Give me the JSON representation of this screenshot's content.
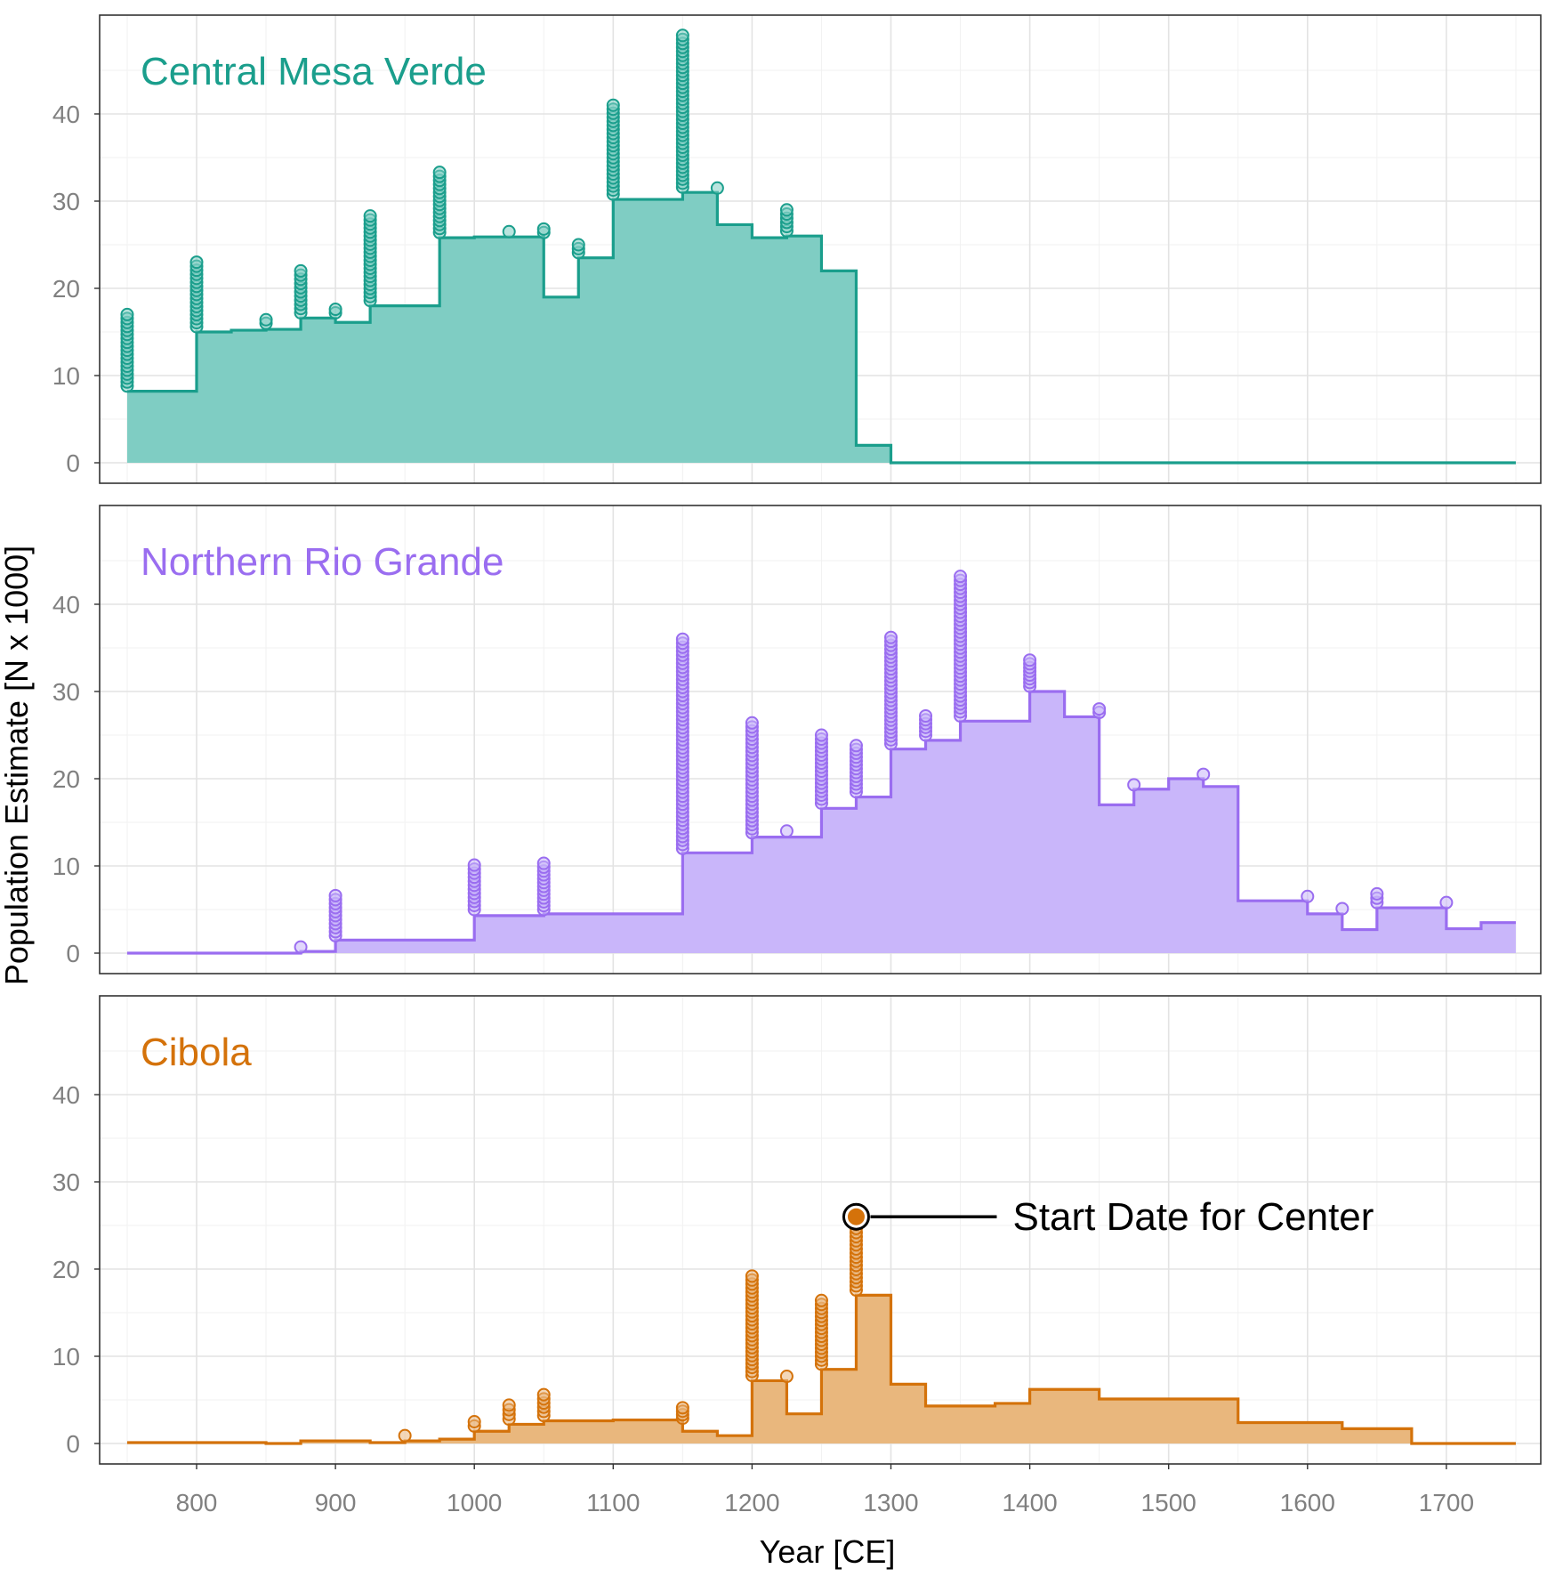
{
  "chart_data": {
    "type": "area",
    "subtype": "faceted step area with vertical point stacks",
    "xlabel": "Year [CE]",
    "ylabel": "Population Estimate [N x 1000]",
    "xlim": [
      750,
      1750
    ],
    "ylim": [
      0,
      50
    ],
    "x_ticks": [
      800,
      900,
      1000,
      1100,
      1200,
      1300,
      1400,
      1500,
      1600,
      1700
    ],
    "y_ticks": [
      0,
      10,
      20,
      30,
      40
    ],
    "grid": true,
    "facet_layout": "3 rows, shared x axis",
    "annotation": {
      "text": "Start Date for Center",
      "panel": "Cibola",
      "point": {
        "x": 1275,
        "y": 26
      }
    },
    "panels": [
      {
        "title": "Central Mesa Verde",
        "color": "#1a9e8c",
        "fill": "#7fcdc3",
        "steps": [
          {
            "x": 750,
            "y": 8.2
          },
          {
            "x": 800,
            "y": 15.0
          },
          {
            "x": 825,
            "y": 15.2
          },
          {
            "x": 850,
            "y": 15.3
          },
          {
            "x": 875,
            "y": 16.6
          },
          {
            "x": 900,
            "y": 16.1
          },
          {
            "x": 925,
            "y": 18.0
          },
          {
            "x": 975,
            "y": 25.8
          },
          {
            "x": 1000,
            "y": 25.9
          },
          {
            "x": 1050,
            "y": 19.0
          },
          {
            "x": 1075,
            "y": 23.5
          },
          {
            "x": 1100,
            "y": 30.2
          },
          {
            "x": 1150,
            "y": 31.0
          },
          {
            "x": 1175,
            "y": 27.3
          },
          {
            "x": 1200,
            "y": 25.8
          },
          {
            "x": 1225,
            "y": 26.0
          },
          {
            "x": 1250,
            "y": 22.0
          },
          {
            "x": 1275,
            "y": 2.0
          },
          {
            "x": 1300,
            "y": 0
          },
          {
            "x": 1750,
            "y": 0
          }
        ],
        "point_stacks": [
          {
            "x": 750,
            "from": 8.8,
            "to": 17.0
          },
          {
            "x": 800,
            "from": 15.6,
            "to": 23.0
          },
          {
            "x": 850,
            "from": 16.0,
            "to": 16.4
          },
          {
            "x": 875,
            "from": 17.2,
            "to": 22.0
          },
          {
            "x": 900,
            "from": 17.2,
            "to": 17.6
          },
          {
            "x": 925,
            "from": 18.6,
            "to": 28.3
          },
          {
            "x": 975,
            "from": 26.4,
            "to": 33.3
          },
          {
            "x": 1025,
            "from": 26.5,
            "to": 26.5
          },
          {
            "x": 1050,
            "from": 26.4,
            "to": 26.8
          },
          {
            "x": 1075,
            "from": 24.1,
            "to": 25.0
          },
          {
            "x": 1100,
            "from": 30.8,
            "to": 41.0
          },
          {
            "x": 1150,
            "from": 31.6,
            "to": 49.0
          },
          {
            "x": 1175,
            "from": 31.5,
            "to": 31.5
          },
          {
            "x": 1225,
            "from": 26.6,
            "to": 29.0
          }
        ]
      },
      {
        "title": "Northern Rio Grande",
        "color": "#9a6df0",
        "fill": "#c9b6fa",
        "steps": [
          {
            "x": 750,
            "y": 0
          },
          {
            "x": 875,
            "y": 0.2
          },
          {
            "x": 900,
            "y": 1.5
          },
          {
            "x": 1000,
            "y": 4.3
          },
          {
            "x": 1050,
            "y": 4.5
          },
          {
            "x": 1150,
            "y": 11.5
          },
          {
            "x": 1200,
            "y": 13.3
          },
          {
            "x": 1250,
            "y": 16.6
          },
          {
            "x": 1275,
            "y": 17.9
          },
          {
            "x": 1300,
            "y": 23.4
          },
          {
            "x": 1325,
            "y": 24.4
          },
          {
            "x": 1350,
            "y": 26.6
          },
          {
            "x": 1400,
            "y": 30.0
          },
          {
            "x": 1425,
            "y": 27.1
          },
          {
            "x": 1450,
            "y": 17.0
          },
          {
            "x": 1475,
            "y": 18.8
          },
          {
            "x": 1500,
            "y": 20.0
          },
          {
            "x": 1525,
            "y": 19.1
          },
          {
            "x": 1550,
            "y": 6.0
          },
          {
            "x": 1600,
            "y": 4.5
          },
          {
            "x": 1625,
            "y": 2.7
          },
          {
            "x": 1650,
            "y": 5.2
          },
          {
            "x": 1700,
            "y": 2.8
          },
          {
            "x": 1725,
            "y": 3.5
          },
          {
            "x": 1750,
            "y": 3.5
          }
        ],
        "point_stacks": [
          {
            "x": 875,
            "from": 0.7,
            "to": 0.7
          },
          {
            "x": 900,
            "from": 2.0,
            "to": 6.6
          },
          {
            "x": 1000,
            "from": 5.0,
            "to": 10.1
          },
          {
            "x": 1050,
            "from": 5.0,
            "to": 10.3
          },
          {
            "x": 1150,
            "from": 12.0,
            "to": 36.0
          },
          {
            "x": 1200,
            "from": 13.8,
            "to": 26.4
          },
          {
            "x": 1225,
            "from": 14.0,
            "to": 14.0
          },
          {
            "x": 1250,
            "from": 17.2,
            "to": 25.0
          },
          {
            "x": 1275,
            "from": 18.5,
            "to": 23.8
          },
          {
            "x": 1300,
            "from": 24.0,
            "to": 36.2
          },
          {
            "x": 1325,
            "from": 25.0,
            "to": 27.2
          },
          {
            "x": 1350,
            "from": 27.2,
            "to": 43.2
          },
          {
            "x": 1400,
            "from": 30.6,
            "to": 33.6
          },
          {
            "x": 1450,
            "from": 27.6,
            "to": 28.0
          },
          {
            "x": 1475,
            "from": 19.3,
            "to": 19.3
          },
          {
            "x": 1525,
            "from": 20.5,
            "to": 20.5
          },
          {
            "x": 1600,
            "from": 6.5,
            "to": 6.5
          },
          {
            "x": 1625,
            "from": 5.1,
            "to": 5.1
          },
          {
            "x": 1650,
            "from": 5.8,
            "to": 6.8
          },
          {
            "x": 1700,
            "from": 5.8,
            "to": 5.8
          }
        ]
      },
      {
        "title": "Cibola",
        "color": "#d4720a",
        "fill": "#e9b77d",
        "steps": [
          {
            "x": 750,
            "y": 0.1
          },
          {
            "x": 850,
            "y": 0
          },
          {
            "x": 875,
            "y": 0.3
          },
          {
            "x": 925,
            "y": 0.1
          },
          {
            "x": 950,
            "y": 0.3
          },
          {
            "x": 975,
            "y": 0.5
          },
          {
            "x": 1000,
            "y": 1.4
          },
          {
            "x": 1025,
            "y": 2.2
          },
          {
            "x": 1050,
            "y": 2.6
          },
          {
            "x": 1100,
            "y": 2.7
          },
          {
            "x": 1150,
            "y": 1.4
          },
          {
            "x": 1175,
            "y": 0.9
          },
          {
            "x": 1200,
            "y": 7.2
          },
          {
            "x": 1225,
            "y": 3.4
          },
          {
            "x": 1250,
            "y": 8.5
          },
          {
            "x": 1275,
            "y": 17.0
          },
          {
            "x": 1300,
            "y": 6.8
          },
          {
            "x": 1325,
            "y": 4.3
          },
          {
            "x": 1375,
            "y": 4.6
          },
          {
            "x": 1400,
            "y": 6.2
          },
          {
            "x": 1450,
            "y": 5.1
          },
          {
            "x": 1550,
            "y": 2.4
          },
          {
            "x": 1625,
            "y": 1.7
          },
          {
            "x": 1675,
            "y": 0
          },
          {
            "x": 1750,
            "y": 0
          }
        ],
        "point_stacks": [
          {
            "x": 950,
            "from": 0.9,
            "to": 0.9
          },
          {
            "x": 1000,
            "from": 2.0,
            "to": 2.5
          },
          {
            "x": 1025,
            "from": 2.8,
            "to": 4.4
          },
          {
            "x": 1050,
            "from": 3.2,
            "to": 5.6
          },
          {
            "x": 1150,
            "from": 2.9,
            "to": 4.1
          },
          {
            "x": 1200,
            "from": 7.8,
            "to": 19.2
          },
          {
            "x": 1225,
            "from": 7.7,
            "to": 7.7
          },
          {
            "x": 1250,
            "from": 9.1,
            "to": 16.4
          },
          {
            "x": 1275,
            "from": 17.6,
            "to": 25.6
          }
        ]
      }
    ]
  }
}
